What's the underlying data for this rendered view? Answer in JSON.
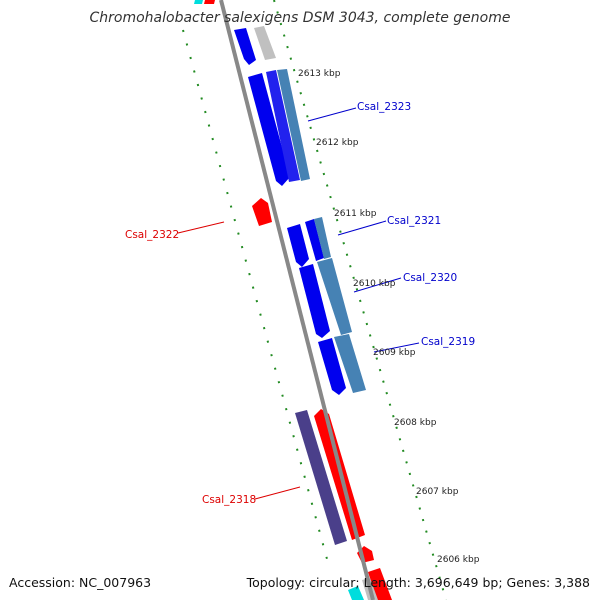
{
  "title": "Chromohalobacter salexigens DSM 3043, complete genome",
  "accession": "Accession: NC_007963",
  "topology": "Topology: circular; Length: 3,696,649 bp; Genes: 3,388",
  "colors": {
    "forward_gene": "#0000ee",
    "reverse_gene": "#ff0000",
    "forward_secondary": "#4682b4",
    "reverse_secondary": "#4a3f8a",
    "backbone": "#888888",
    "tick": "#228b22",
    "label_forward": "#0000cc",
    "label_reverse": "#dd0000"
  },
  "kbp_ticks": [
    "2613 kbp",
    "2612 kbp",
    "2611 kbp",
    "2610 kbp",
    "2609 kbp",
    "2608 kbp",
    "2607 kbp",
    "2606 kbp"
  ],
  "gene_labels": [
    {
      "text": "Csal_2323",
      "strand": "forward"
    },
    {
      "text": "Csal_2322",
      "strand": "reverse"
    },
    {
      "text": "Csal_2321",
      "strand": "forward"
    },
    {
      "text": "Csal_2320",
      "strand": "forward"
    },
    {
      "text": "Csal_2319",
      "strand": "forward"
    },
    {
      "text": "Csal_2318",
      "strand": "reverse"
    }
  ]
}
